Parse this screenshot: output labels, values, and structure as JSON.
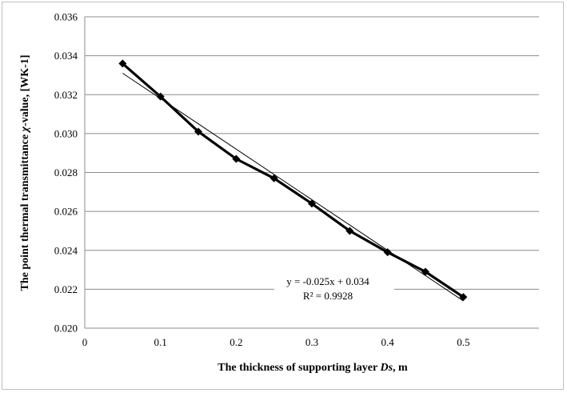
{
  "chart_data": {
    "type": "line",
    "xlabel_parts": [
      {
        "text": "The thickness of supporting  layer ",
        "italic": false
      },
      {
        "text": "Ds",
        "italic": true
      },
      {
        "text": ", m",
        "italic": false
      }
    ],
    "ylabel_parts": [
      {
        "text": "The point thermal transmittance  ",
        "italic": false
      },
      {
        "text": "χ",
        "italic": true
      },
      {
        "text": "-value,  [WK-1]",
        "italic": false
      }
    ],
    "xlim": [
      0,
      0.6
    ],
    "ylim": [
      0.02,
      0.036
    ],
    "x_ticks": [
      0,
      0.1,
      0.2,
      0.3,
      0.4,
      0.5
    ],
    "x_tick_labels": [
      "0",
      "0.1",
      "0.2",
      "0.3",
      "0.4",
      "0.5"
    ],
    "y_ticks": [
      0.02,
      0.022,
      0.024,
      0.026,
      0.028,
      0.03,
      0.032,
      0.034,
      0.036
    ],
    "y_tick_labels": [
      "0.020",
      "0.022",
      "0.024",
      "0.026",
      "0.028",
      "0.030",
      "0.032",
      "0.034",
      "0.036"
    ],
    "grid": "horizontal",
    "series": [
      {
        "x": [
          0.05,
          0.1,
          0.15,
          0.2,
          0.25,
          0.3,
          0.35,
          0.4,
          0.45,
          0.5
        ],
        "y": [
          0.0336,
          0.0319,
          0.0301,
          0.0287,
          0.0277,
          0.0264,
          0.025,
          0.0239,
          0.0229,
          0.0216
        ],
        "color": "#000000",
        "marker": "diamond"
      }
    ],
    "trendline": {
      "type": "linear",
      "x_range": [
        0.05,
        0.5
      ],
      "y_range": [
        0.0331,
        0.0214
      ],
      "color": "#000000",
      "equation": "y = -0.025x  + 0.034",
      "r_squared": "R² = 0.9928"
    }
  }
}
